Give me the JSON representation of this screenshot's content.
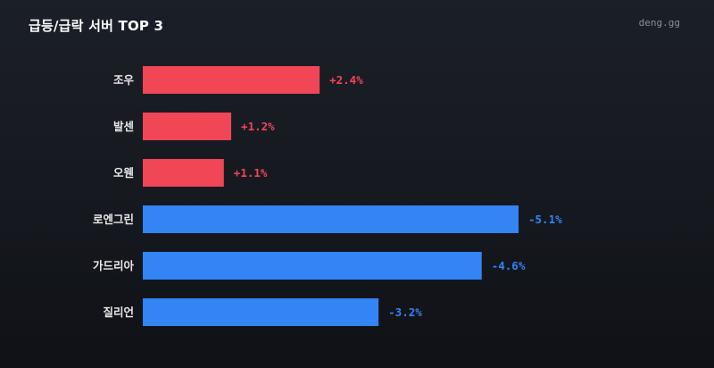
{
  "header": {
    "title": "급등/급락 서버 TOP 3",
    "brand": "deng.gg"
  },
  "colors": {
    "up": "#f04656",
    "down": "#3384f5"
  },
  "chart_data": {
    "type": "bar",
    "orientation": "horizontal",
    "categories": [
      "조우",
      "발센",
      "오웬",
      "로엔그린",
      "가드리아",
      "질리언"
    ],
    "values": [
      2.4,
      1.2,
      1.1,
      -5.1,
      -4.6,
      -3.2
    ],
    "value_labels": [
      "+2.4%",
      "+1.2%",
      "+1.1%",
      "-5.1%",
      "-4.6%",
      "-3.2%"
    ],
    "magnitude_max": 5.1,
    "grid": false,
    "legend": "none"
  }
}
